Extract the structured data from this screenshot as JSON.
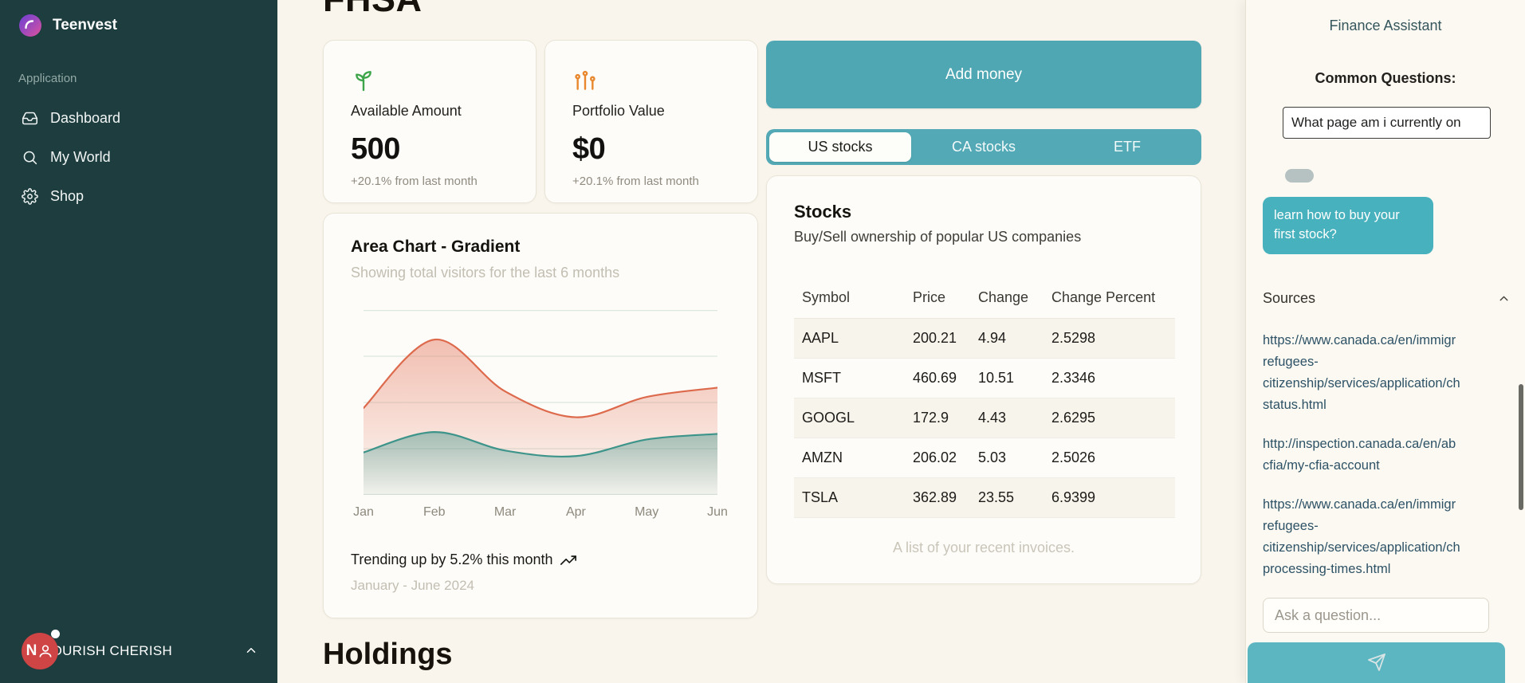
{
  "app": {
    "accent_teal": "#4fa7b3",
    "bubble_teal": "#47b1bd",
    "sidebar_bg": "#1e3d3f",
    "background_cream": "#f9f5ec",
    "chart_red": "#dd6a4c",
    "chart_teal": "#3d948a",
    "avatar_red": "#cf4444"
  },
  "sidebar": {
    "brand": "Teenvest",
    "section_label": "Application",
    "items": [
      {
        "label": "Dashboard",
        "icon": "inbox-icon"
      },
      {
        "label": "My World",
        "icon": "search-icon"
      },
      {
        "label": "Shop",
        "icon": "gear-icon"
      }
    ],
    "user": {
      "initial": "N",
      "name": "NOURISH CHERISH"
    }
  },
  "main": {
    "page_title": "FHSA",
    "stats": [
      {
        "label": "Available Amount",
        "value": "500",
        "delta": "+20.1% from last month",
        "icon": "sprout-icon",
        "icon_color": "#3da549"
      },
      {
        "label": "Portfolio Value",
        "value": "$0",
        "delta": "+20.1% from last month",
        "icon": "chart-icon",
        "icon_color": "#e8872e"
      }
    ],
    "add_money_label": "Add money",
    "tabs": [
      "US stocks",
      "CA stocks",
      "ETF"
    ],
    "active_tab": "US stocks",
    "stocks": {
      "title": "Stocks",
      "subtitle": "Buy/Sell ownership of popular US companies",
      "columns": [
        "Symbol",
        "Price",
        "Change",
        "Change Percent"
      ],
      "rows": [
        [
          "AAPL",
          "200.21",
          "4.94",
          "2.5298"
        ],
        [
          "MSFT",
          "460.69",
          "10.51",
          "2.3346"
        ],
        [
          "GOOGL",
          "172.9",
          "4.43",
          "2.6295"
        ],
        [
          "AMZN",
          "206.02",
          "5.03",
          "2.5026"
        ],
        [
          "TSLA",
          "362.89",
          "23.55",
          "6.9399"
        ]
      ],
      "caption": "A list of your recent invoices."
    },
    "holdings_title": "Holdings"
  },
  "chart_data": {
    "type": "area",
    "title": "Area Chart - Gradient",
    "subtitle": "Showing total visitors for the last 6 months",
    "x": [
      "Jan",
      "Feb",
      "Mar",
      "Apr",
      "May",
      "Jun"
    ],
    "ylim": [
      0,
      100
    ],
    "grid": true,
    "legend": "none",
    "series": [
      {
        "name": "series-red",
        "color": "#dd6a4c",
        "fill_from": "rgba(226,106,80,0.42)",
        "fill_to": "rgba(226,106,80,0.03)",
        "values": [
          47,
          84,
          56,
          42,
          53,
          58
        ]
      },
      {
        "name": "series-teal",
        "color": "#3d948a",
        "fill_from": "rgba(61,148,138,0.45)",
        "fill_to": "rgba(61,148,138,0.05)",
        "values": [
          23,
          34,
          24,
          21,
          30,
          33
        ]
      }
    ],
    "footer_trend": "Trending up by 5.2% this month",
    "footer_period": "January - June 2024"
  },
  "assistant": {
    "title": "Finance Assistant",
    "common_questions_label": "Common Questions:",
    "question_card": "What page am i currently on",
    "suggestion_bubble": "learn how to buy your first stock?",
    "sources_label": "Sources",
    "sources": [
      {
        "lines": [
          "https://www.canada.ca/en/immigr",
          "refugees-",
          "citizenship/services/application/ch",
          "status.html"
        ]
      },
      {
        "lines": [
          "http://inspection.canada.ca/en/ab",
          "cfia/my-cfia-account"
        ]
      },
      {
        "lines": [
          "https://www.canada.ca/en/immigr",
          "refugees-",
          "citizenship/services/application/ch",
          "processing-times.html"
        ]
      }
    ],
    "input_placeholder": "Ask a question..."
  }
}
